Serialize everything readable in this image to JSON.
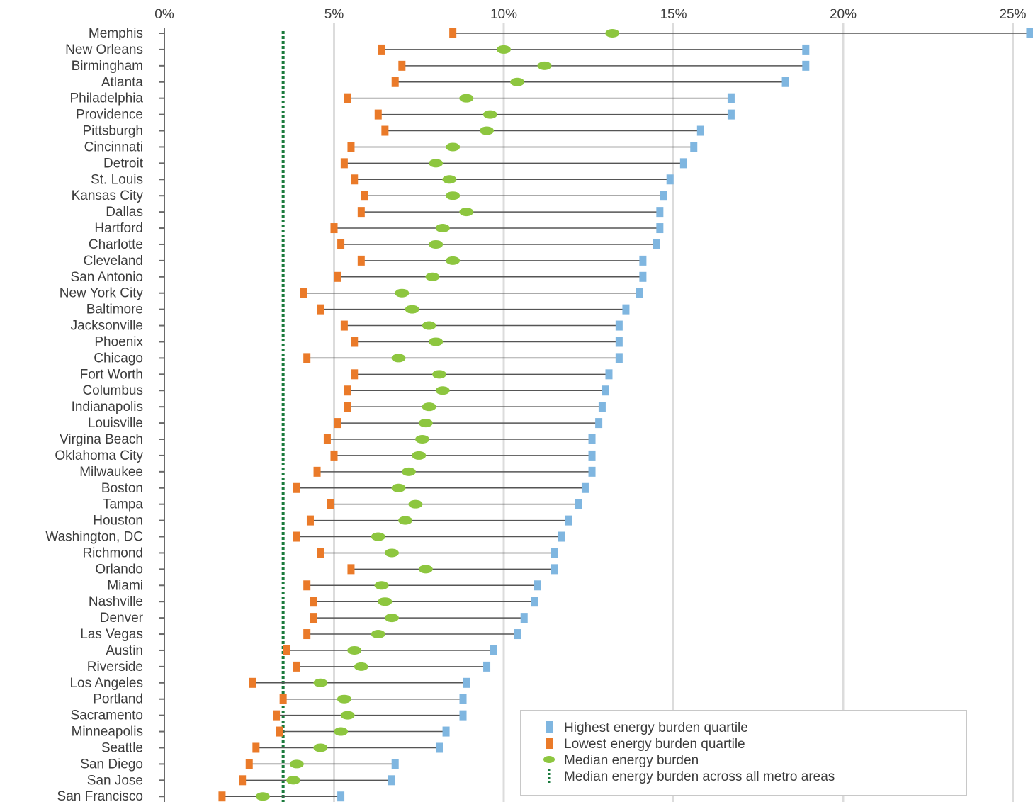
{
  "chart_data": {
    "type": "dumbbell",
    "x_ticks": [
      "0%",
      "5%",
      "10%",
      "15%",
      "20%",
      "25%"
    ],
    "xlim": [
      0,
      25
    ],
    "overall_median": 3.5,
    "grid": true,
    "legend": {
      "position": "bottom-right",
      "entries": [
        {
          "label": "Highest energy burden quartile",
          "color": "#7fb6e0",
          "marker": "square"
        },
        {
          "label": "Lowest energy burden quartile",
          "color": "#ea7a29",
          "marker": "square"
        },
        {
          "label": "Median energy burden",
          "color": "#8dc63f",
          "marker": "circle"
        },
        {
          "label": "Median energy burden across all metro areas",
          "color": "#1a7a3c",
          "marker": "dotted-line"
        }
      ]
    },
    "series": [
      {
        "city": "Memphis",
        "low": 8.5,
        "median": 13.2,
        "high": 25.5
      },
      {
        "city": "New Orleans",
        "low": 6.4,
        "median": 10.0,
        "high": 18.9
      },
      {
        "city": "Birmingham",
        "low": 7.0,
        "median": 11.2,
        "high": 18.9
      },
      {
        "city": "Atlanta",
        "low": 6.8,
        "median": 10.4,
        "high": 18.3
      },
      {
        "city": "Philadelphia",
        "low": 5.4,
        "median": 8.9,
        "high": 16.7
      },
      {
        "city": "Providence",
        "low": 6.3,
        "median": 9.6,
        "high": 16.7
      },
      {
        "city": "Pittsburgh",
        "low": 6.5,
        "median": 9.5,
        "high": 15.8
      },
      {
        "city": "Cincinnati",
        "low": 5.5,
        "median": 8.5,
        "high": 15.6
      },
      {
        "city": "Detroit",
        "low": 5.3,
        "median": 8.0,
        "high": 15.3
      },
      {
        "city": "St. Louis",
        "low": 5.6,
        "median": 8.4,
        "high": 14.9
      },
      {
        "city": "Kansas City",
        "low": 5.9,
        "median": 8.5,
        "high": 14.7
      },
      {
        "city": "Dallas",
        "low": 5.8,
        "median": 8.9,
        "high": 14.6
      },
      {
        "city": "Hartford",
        "low": 5.0,
        "median": 8.2,
        "high": 14.6
      },
      {
        "city": "Charlotte",
        "low": 5.2,
        "median": 8.0,
        "high": 14.5
      },
      {
        "city": "Cleveland",
        "low": 5.8,
        "median": 8.5,
        "high": 14.1
      },
      {
        "city": "San Antonio",
        "low": 5.1,
        "median": 7.9,
        "high": 14.1
      },
      {
        "city": "New York City",
        "low": 4.1,
        "median": 7.0,
        "high": 14.0
      },
      {
        "city": "Baltimore",
        "low": 4.6,
        "median": 7.3,
        "high": 13.6
      },
      {
        "city": "Jacksonville",
        "low": 5.3,
        "median": 7.8,
        "high": 13.4
      },
      {
        "city": "Phoenix",
        "low": 5.6,
        "median": 8.0,
        "high": 13.4
      },
      {
        "city": "Chicago",
        "low": 4.2,
        "median": 6.9,
        "high": 13.4
      },
      {
        "city": "Fort Worth",
        "low": 5.6,
        "median": 8.1,
        "high": 13.1
      },
      {
        "city": "Columbus",
        "low": 5.4,
        "median": 8.2,
        "high": 13.0
      },
      {
        "city": "Indianapolis",
        "low": 5.4,
        "median": 7.8,
        "high": 12.9
      },
      {
        "city": "Louisville",
        "low": 5.1,
        "median": 7.7,
        "high": 12.8
      },
      {
        "city": "Virgina Beach",
        "low": 4.8,
        "median": 7.6,
        "high": 12.6
      },
      {
        "city": "Oklahoma City",
        "low": 5.0,
        "median": 7.5,
        "high": 12.6
      },
      {
        "city": "Milwaukee",
        "low": 4.5,
        "median": 7.2,
        "high": 12.6
      },
      {
        "city": "Boston",
        "low": 3.9,
        "median": 6.9,
        "high": 12.4
      },
      {
        "city": "Tampa",
        "low": 4.9,
        "median": 7.4,
        "high": 12.2
      },
      {
        "city": "Houston",
        "low": 4.3,
        "median": 7.1,
        "high": 11.9
      },
      {
        "city": "Washington, DC",
        "low": 3.9,
        "median": 6.3,
        "high": 11.7
      },
      {
        "city": "Richmond",
        "low": 4.6,
        "median": 6.7,
        "high": 11.5
      },
      {
        "city": "Orlando",
        "low": 5.5,
        "median": 7.7,
        "high": 11.5
      },
      {
        "city": "Miami",
        "low": 4.2,
        "median": 6.4,
        "high": 11.0
      },
      {
        "city": "Nashville",
        "low": 4.4,
        "median": 6.5,
        "high": 10.9
      },
      {
        "city": "Denver",
        "low": 4.4,
        "median": 6.7,
        "high": 10.6
      },
      {
        "city": "Las Vegas",
        "low": 4.2,
        "median": 6.3,
        "high": 10.4
      },
      {
        "city": "Austin",
        "low": 3.6,
        "median": 5.6,
        "high": 9.7
      },
      {
        "city": "Riverside",
        "low": 3.9,
        "median": 5.8,
        "high": 9.5
      },
      {
        "city": "Los Angeles",
        "low": 2.6,
        "median": 4.6,
        "high": 8.9
      },
      {
        "city": "Portland",
        "low": 3.5,
        "median": 5.3,
        "high": 8.8
      },
      {
        "city": "Sacramento",
        "low": 3.3,
        "median": 5.4,
        "high": 8.8
      },
      {
        "city": "Minneapolis",
        "low": 3.4,
        "median": 5.2,
        "high": 8.3
      },
      {
        "city": "Seattle",
        "low": 2.7,
        "median": 4.6,
        "high": 8.1
      },
      {
        "city": "San Diego",
        "low": 2.5,
        "median": 3.9,
        "high": 6.8
      },
      {
        "city": "San Jose",
        "low": 2.3,
        "median": 3.8,
        "high": 6.7
      },
      {
        "city": "San Francisco",
        "low": 1.7,
        "median": 2.9,
        "high": 5.2
      }
    ]
  }
}
